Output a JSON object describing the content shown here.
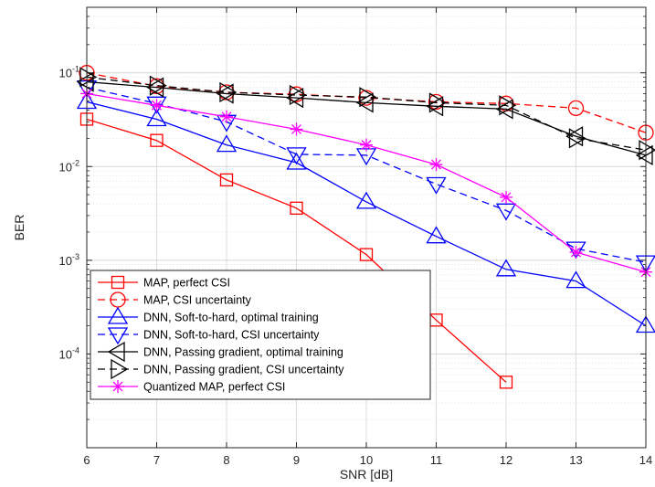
{
  "chart_data": {
    "type": "line",
    "title": "",
    "xlabel": "SNR [dB]",
    "ylabel": "BER",
    "x": [
      6,
      7,
      8,
      9,
      10,
      11,
      12,
      13,
      14
    ],
    "xlim": [
      6,
      14
    ],
    "ylim": [
      1e-05,
      0.5
    ],
    "yscale": "log",
    "xticks": [
      "6",
      "7",
      "8",
      "9",
      "10",
      "11",
      "12",
      "13",
      "14"
    ],
    "yticks": [
      {
        "value": 0.0001,
        "base": "10",
        "exp": "-4"
      },
      {
        "value": 0.001,
        "base": "10",
        "exp": "-3"
      },
      {
        "value": 0.01,
        "base": "10",
        "exp": "-2"
      },
      {
        "value": 0.1,
        "base": "10",
        "exp": "-1"
      }
    ],
    "grid": true,
    "minor_grid": true,
    "legend_position": "bottom-left",
    "series": [
      {
        "name": "MAP, perfect CSI",
        "color": "#ff0000",
        "dash": "solid",
        "marker": "square",
        "values": [
          0.032,
          0.019,
          0.0072,
          0.0036,
          0.00115,
          0.00023,
          5e-05,
          null,
          null
        ]
      },
      {
        "name": "MAP, CSI uncertainty",
        "color": "#ff0000",
        "dash": "dashed",
        "marker": "circle",
        "values": [
          0.1,
          0.072,
          0.062,
          0.059,
          0.054,
          0.049,
          0.047,
          0.042,
          0.023
        ]
      },
      {
        "name": "DNN, Soft-to-hard, optimal training",
        "color": "#0000ff",
        "dash": "solid",
        "marker": "triangle-up",
        "values": [
          0.049,
          0.032,
          0.017,
          0.011,
          0.0042,
          0.0018,
          0.0008,
          0.0006,
          0.0002
        ]
      },
      {
        "name": "DNN, Soft-to-hard, CSI uncertainty",
        "color": "#0000ff",
        "dash": "dashed",
        "marker": "triangle-down",
        "values": [
          0.07,
          0.047,
          0.03,
          0.0135,
          0.0132,
          0.0065,
          0.0034,
          0.00133,
          0.00095
        ]
      },
      {
        "name": "DNN, Passing gradient, optimal training",
        "color": "#000000",
        "dash": "solid",
        "marker": "triangle-left",
        "values": [
          0.08,
          0.07,
          0.06,
          0.054,
          0.048,
          0.044,
          0.041,
          0.021,
          0.0132
        ]
      },
      {
        "name": "DNN, Passing gradient, CSI uncertainty",
        "color": "#000000",
        "dash": "dashed",
        "marker": "triangle-right",
        "values": [
          0.09,
          0.073,
          0.062,
          0.058,
          0.055,
          0.048,
          0.045,
          0.02,
          0.015
        ]
      },
      {
        "name": "Quantized MAP, perfect CSI",
        "color": "#ff00ff",
        "dash": "solid",
        "marker": "asterisk",
        "values": [
          0.06,
          0.045,
          0.034,
          0.025,
          0.017,
          0.0105,
          0.0047,
          0.00122,
          0.00075
        ]
      }
    ]
  }
}
